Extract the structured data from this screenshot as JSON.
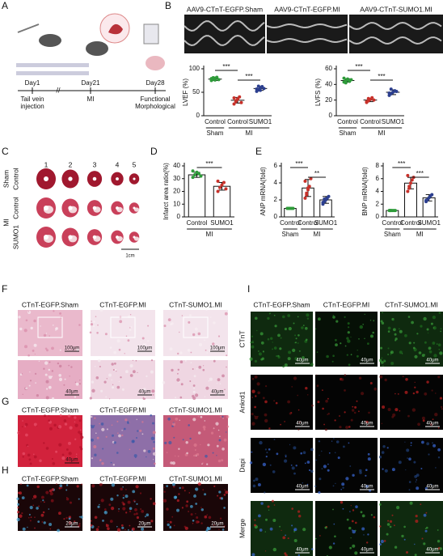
{
  "panel_labels": [
    "A",
    "B",
    "C",
    "D",
    "E",
    "F",
    "G",
    "H",
    "I"
  ],
  "A": {
    "days": [
      "Day1",
      "Day21",
      "Day28"
    ],
    "events": [
      [
        "Tail vein",
        "injection"
      ],
      [
        "MI"
      ],
      [
        "Functional",
        "Morphological"
      ]
    ]
  },
  "B": {
    "titles": [
      "AAV9-CTnT-EGFP.Sham",
      "AAV9-CTnT-EGFP.MI",
      "AAV9-CTnT-SUMO1.MI"
    ]
  },
  "C": {
    "columns": [
      "1",
      "2",
      "3",
      "4",
      "5"
    ],
    "groups": [
      {
        "name": "Sham",
        "rows": [
          "Control"
        ]
      },
      {
        "name": "MI",
        "rows": [
          "Control",
          "SUMO1"
        ]
      }
    ],
    "scale": "1cm"
  },
  "F": {
    "titles": [
      "CTnT-EGFP.Sham",
      "CTnT-EGFP.MI",
      "CTnT-SUMO1.MI"
    ],
    "scale_top": "100μm",
    "scale_bottom": "40μm"
  },
  "G": {
    "titles": [
      "CTnT-EGFP.Sham",
      "CTnT-EGFP.MI",
      "CTnT-SUMO1.MI"
    ],
    "scale": "40μm"
  },
  "H": {
    "titles": [
      "CTnT-EGFP.Sham",
      "CTnT-EGFP.MI",
      "CTnT-SUMO1.MI"
    ],
    "scale": "20μm"
  },
  "I": {
    "titles": [
      "CTnT-EGFP.Sham",
      "CTnT-EGFP.MI",
      "CTnT-SUMO1.MI"
    ],
    "rows": [
      "CTnT",
      "Ankrd1",
      "Dapi",
      "Merge"
    ],
    "scale": "40μm"
  },
  "charts": [
    {
      "type": "dot",
      "ylabel": "LVEF (%)",
      "ylim": [
        0,
        100
      ],
      "yticks": [
        0,
        50,
        100
      ],
      "categories": [
        "Control",
        "Control",
        "SUMO1"
      ],
      "group_labels": [
        "Sham",
        "MI"
      ],
      "colors": [
        "#2e9b3a",
        "#c8312a",
        "#2c3f8f"
      ],
      "means": [
        78,
        33,
        58
      ],
      "errors": [
        3,
        6,
        4
      ],
      "points": [
        [
          75,
          78,
          80,
          82,
          77,
          79,
          81,
          76
        ],
        [
          25,
          30,
          35,
          40,
          28,
          38,
          32,
          36
        ],
        [
          52,
          55,
          60,
          62,
          58,
          57,
          63,
          54
        ]
      ],
      "significance": [
        "***",
        "***"
      ]
    },
    {
      "type": "dot",
      "ylabel": "LVFS (%)",
      "ylim": [
        0,
        60
      ],
      "yticks": [
        0,
        20,
        40,
        60
      ],
      "categories": [
        "Control",
        "Control",
        "SUMO1"
      ],
      "group_labels": [
        "Sham",
        "MI"
      ],
      "colors": [
        "#2e9b3a",
        "#c8312a",
        "#2c3f8f"
      ],
      "means": [
        45,
        20,
        30
      ],
      "errors": [
        2,
        2,
        3
      ],
      "points": [
        [
          43,
          45,
          47,
          44,
          46,
          48,
          42,
          46
        ],
        [
          17,
          19,
          21,
          23,
          20,
          18,
          22
        ],
        [
          26,
          28,
          30,
          32,
          31,
          29,
          34
        ]
      ],
      "significance": [
        "***",
        "***"
      ]
    },
    {
      "type": "bar",
      "ylabel": "Infarct area ratio(%)",
      "ylim": [
        0,
        40
      ],
      "yticks": [
        0,
        10,
        20,
        30,
        40
      ],
      "categories": [
        "Control",
        "SUMO1"
      ],
      "group_labels": [
        "MI"
      ],
      "colors": [
        "#2e9b3a",
        "#c8312a"
      ],
      "means": [
        33,
        24
      ],
      "errors": [
        2,
        3
      ],
      "points": [
        [
          31,
          33,
          35,
          34,
          32,
          36
        ],
        [
          20,
          23,
          25,
          27,
          22,
          28
        ]
      ],
      "significance": [
        "***"
      ]
    },
    {
      "type": "bar",
      "ylabel": "ANP mRNA(fold)",
      "ylim": [
        0,
        6
      ],
      "yticks": [
        0,
        2,
        4,
        6
      ],
      "categories": [
        "Control",
        "Control",
        "SUMO1"
      ],
      "group_labels": [
        "Sham",
        "MI"
      ],
      "colors": [
        "#2e9b3a",
        "#c8312a",
        "#2c3f8f"
      ],
      "means": [
        1,
        3.4,
        2.0
      ],
      "errors": [
        0.05,
        1.0,
        0.4
      ],
      "points": [
        [
          1,
          1,
          1,
          1,
          1,
          1,
          1
        ],
        [
          2.2,
          2.8,
          3.2,
          3.6,
          4.5,
          4.2,
          2.6,
          3.4
        ],
        [
          1.5,
          1.8,
          2.0,
          2.2,
          2.4,
          1.7,
          2.1
        ]
      ],
      "significance": [
        "***",
        "**"
      ]
    },
    {
      "type": "bar",
      "ylabel": "BNP mRNA(fold)",
      "ylim": [
        0,
        8
      ],
      "yticks": [
        0,
        2,
        4,
        6,
        8
      ],
      "categories": [
        "Control",
        "Control",
        "SUMO1"
      ],
      "group_labels": [
        "Sham",
        "MI"
      ],
      "colors": [
        "#2e9b3a",
        "#c8312a",
        "#2c3f8f"
      ],
      "means": [
        1,
        5.3,
        3.0
      ],
      "errors": [
        0.05,
        0.9,
        0.5
      ],
      "points": [
        [
          1,
          1,
          1,
          1,
          1,
          1,
          1
        ],
        [
          4.0,
          4.8,
          5.3,
          5.8,
          6.2,
          6.5,
          4.5
        ],
        [
          2.4,
          2.7,
          3.0,
          3.3,
          3.5,
          2.6
        ]
      ],
      "significance": [
        "***",
        "***"
      ]
    }
  ]
}
